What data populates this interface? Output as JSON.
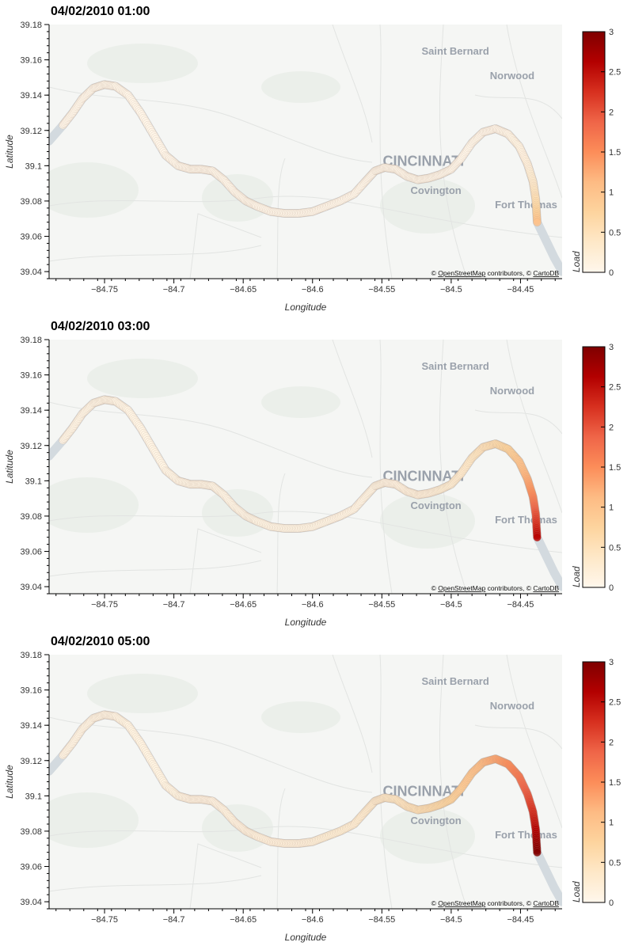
{
  "panels": [
    {
      "title": "04/02/2010 01:00",
      "peak": 1.0,
      "spread": 0.035
    },
    {
      "title": "04/02/2010 03:00",
      "peak": 2.5,
      "spread": 0.09
    },
    {
      "title": "04/02/2010 05:00",
      "peak": 2.9,
      "spread": 0.16
    }
  ],
  "map": {
    "places": [
      {
        "name": "Saint Bernard",
        "lon": -84.497,
        "lat": 39.163
      },
      {
        "name": "Norwood",
        "lon": -84.456,
        "lat": 39.149
      },
      {
        "name": "CINCINNATI",
        "lon": -84.52,
        "lat": 39.1
      },
      {
        "name": "Covington",
        "lon": -84.511,
        "lat": 39.084
      },
      {
        "name": "Fort Thomas",
        "lon": -84.446,
        "lat": 39.076
      }
    ],
    "attribution": {
      "prefix": "© ",
      "osm": "OpenStreetMap",
      "middle": " contributors, © ",
      "carto": "CartoDB"
    },
    "colors": {
      "land": "#f5f6f4",
      "water": "#d3dadf",
      "road": "#ffffff",
      "green": "#e9eee7"
    }
  },
  "chart_data": {
    "type": "scatter",
    "xlabel": "Longitude",
    "ylabel": "Latitude",
    "xlim": [
      -84.79,
      -84.42
    ],
    "ylim": [
      39.036,
      39.18
    ],
    "xticks": [
      -84.75,
      -84.7,
      -84.65,
      -84.6,
      -84.55,
      -84.5,
      -84.45
    ],
    "yticks": [
      39.04,
      39.06,
      39.08,
      39.1,
      39.12,
      39.14,
      39.16,
      39.18
    ],
    "river_path": [
      [
        -84.78,
        39.123
      ],
      [
        -84.773,
        39.13
      ],
      [
        -84.766,
        39.138
      ],
      [
        -84.758,
        39.144
      ],
      [
        -84.75,
        39.146
      ],
      [
        -84.742,
        39.145
      ],
      [
        -84.733,
        39.14
      ],
      [
        -84.724,
        39.13
      ],
      [
        -84.715,
        39.118
      ],
      [
        -84.706,
        39.106
      ],
      [
        -84.697,
        39.1
      ],
      [
        -84.688,
        39.098
      ],
      [
        -84.68,
        39.098
      ],
      [
        -84.672,
        39.097
      ],
      [
        -84.664,
        39.092
      ],
      [
        -84.656,
        39.085
      ],
      [
        -84.648,
        39.08
      ],
      [
        -84.64,
        39.077
      ],
      [
        -84.63,
        39.074
      ],
      [
        -84.62,
        39.073
      ],
      [
        -84.61,
        39.073
      ],
      [
        -84.6,
        39.074
      ],
      [
        -84.59,
        39.077
      ],
      [
        -84.58,
        39.08
      ],
      [
        -84.57,
        39.084
      ],
      [
        -84.562,
        39.091
      ],
      [
        -84.555,
        39.097
      ],
      [
        -84.548,
        39.099
      ],
      [
        -84.54,
        39.098
      ],
      [
        -84.532,
        39.094
      ],
      [
        -84.524,
        39.092
      ],
      [
        -84.516,
        39.093
      ],
      [
        -84.508,
        39.095
      ],
      [
        -84.5,
        39.098
      ],
      [
        -84.493,
        39.104
      ],
      [
        -84.485,
        39.113
      ],
      [
        -84.477,
        39.119
      ],
      [
        -84.468,
        39.121
      ],
      [
        -84.459,
        39.118
      ],
      [
        -84.451,
        39.111
      ],
      [
        -84.445,
        39.101
      ],
      [
        -84.441,
        39.091
      ],
      [
        -84.439,
        39.081
      ],
      [
        -84.438,
        39.068
      ]
    ],
    "series": [
      {
        "name": "04/02/2010 01:00",
        "load_peak": 1.0
      },
      {
        "name": "04/02/2010 03:00",
        "load_peak": 2.5
      },
      {
        "name": "04/02/2010 05:00",
        "load_peak": 2.9
      }
    ],
    "colorbar": {
      "label": "Load",
      "min": 0,
      "max": 3,
      "ticks": [
        "0",
        "0.5",
        "1",
        "1.5",
        "2",
        "2.5",
        "3"
      ],
      "colors": [
        "#fff7ec",
        "#fee8c8",
        "#fdd49e",
        "#fdbb84",
        "#fc8d59",
        "#ef6548",
        "#d7301f",
        "#b30000",
        "#7f0000"
      ]
    },
    "grid": false
  }
}
